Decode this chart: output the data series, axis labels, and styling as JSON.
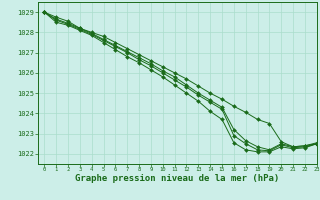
{
  "background_color": "#cceee8",
  "grid_color": "#aaddcc",
  "line_color": "#1a6b1a",
  "marker_color": "#1a6b1a",
  "xlabel": "Graphe pression niveau de la mer (hPa)",
  "xlabel_fontsize": 6.5,
  "xlim": [
    -0.5,
    23
  ],
  "ylim": [
    1021.5,
    1029.5
  ],
  "yticks": [
    1022,
    1023,
    1024,
    1025,
    1026,
    1027,
    1028,
    1029
  ],
  "xticks": [
    0,
    1,
    2,
    3,
    4,
    5,
    6,
    7,
    8,
    9,
    10,
    11,
    12,
    13,
    14,
    15,
    16,
    17,
    18,
    19,
    20,
    21,
    22,
    23
  ],
  "series": [
    [
      1029.0,
      1028.75,
      1028.55,
      1028.2,
      1028.0,
      1027.8,
      1027.5,
      1027.2,
      1026.9,
      1026.6,
      1026.3,
      1026.0,
      1025.7,
      1025.35,
      1025.0,
      1024.7,
      1024.35,
      1024.05,
      1023.7,
      1023.5,
      1022.6,
      1022.35,
      1022.4,
      1022.5
    ],
    [
      1029.0,
      1028.65,
      1028.45,
      1028.2,
      1027.95,
      1027.65,
      1027.35,
      1027.05,
      1026.75,
      1026.45,
      1026.1,
      1025.8,
      1025.4,
      1025.0,
      1024.65,
      1024.3,
      1023.2,
      1022.65,
      1022.35,
      1022.2,
      1022.5,
      1022.35,
      1022.4,
      1022.55
    ],
    [
      1029.0,
      1028.6,
      1028.4,
      1028.15,
      1027.9,
      1027.6,
      1027.3,
      1027.0,
      1026.65,
      1026.35,
      1026.0,
      1025.65,
      1025.3,
      1024.9,
      1024.55,
      1024.2,
      1022.9,
      1022.5,
      1022.2,
      1022.15,
      1022.45,
      1022.3,
      1022.35,
      1022.5
    ],
    [
      1029.0,
      1028.5,
      1028.35,
      1028.1,
      1027.85,
      1027.5,
      1027.15,
      1026.8,
      1026.5,
      1026.15,
      1025.8,
      1025.4,
      1025.0,
      1024.6,
      1024.1,
      1023.7,
      1022.55,
      1022.2,
      1022.1,
      1022.1,
      1022.35,
      1022.25,
      1022.3,
      1022.5
    ]
  ]
}
